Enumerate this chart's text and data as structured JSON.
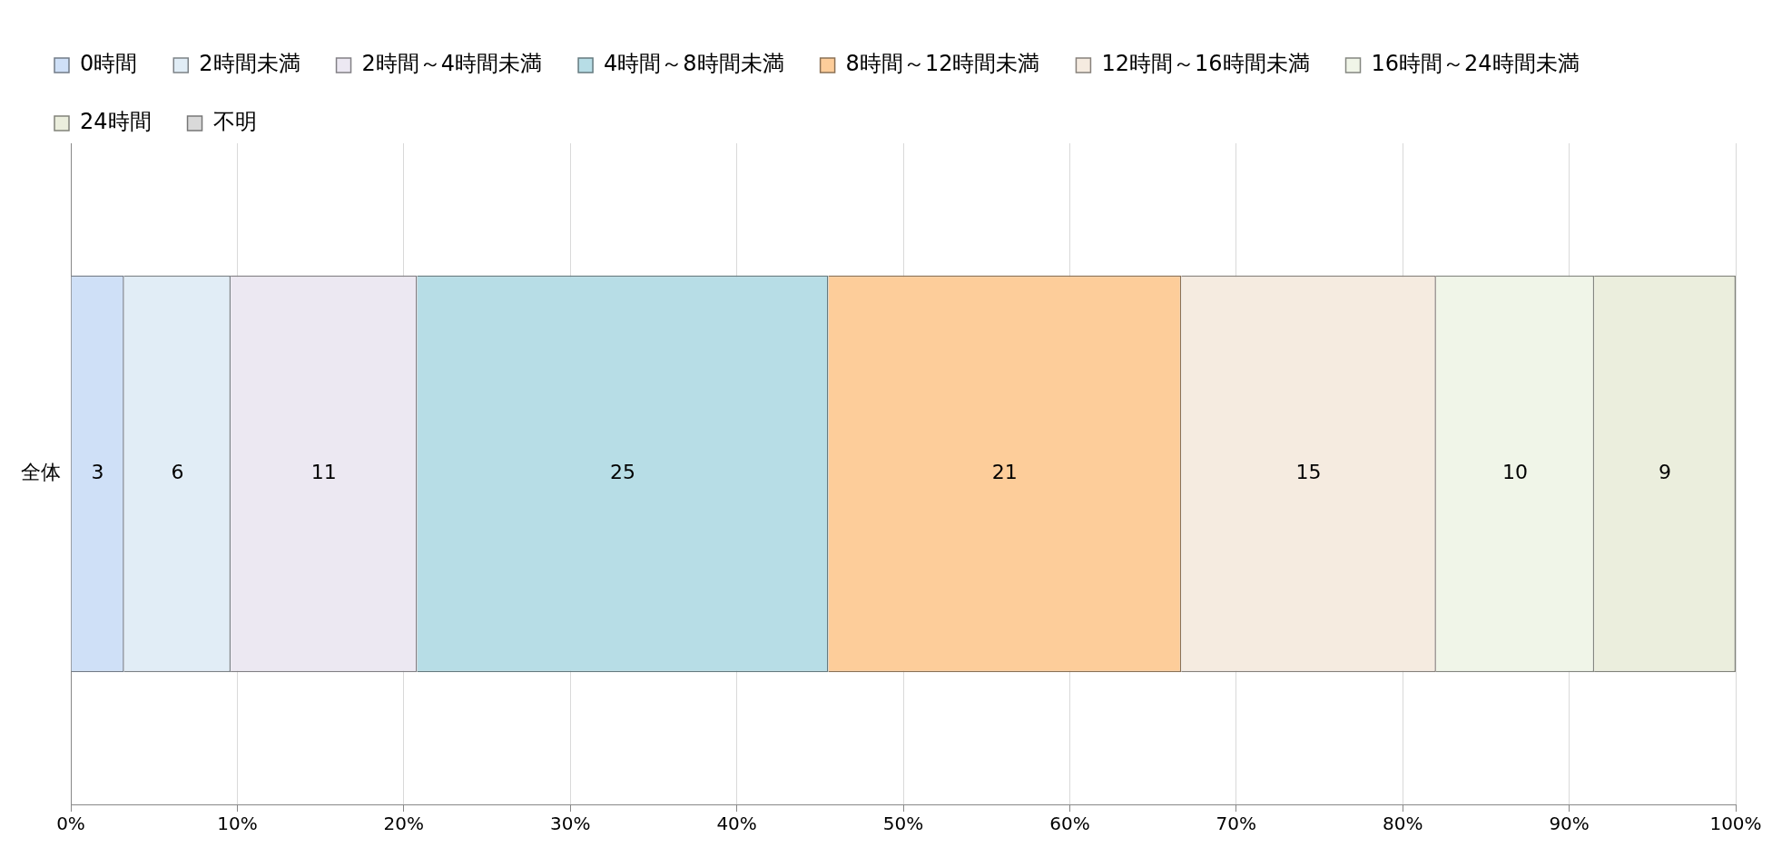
{
  "chart_data": {
    "type": "bar",
    "orientation": "horizontal",
    "stacked": true,
    "categories": [
      "全体"
    ],
    "series": [
      {
        "name": "0時間",
        "color": "#cfe0f7",
        "values": [
          3.2
        ],
        "value_labels": [
          "3"
        ]
      },
      {
        "name": "2時間未満",
        "color": "#e1edf6",
        "values": [
          6.4
        ],
        "value_labels": [
          "6"
        ]
      },
      {
        "name": "2時間～4時間未満",
        "color": "#ece8f2",
        "values": [
          11.2
        ],
        "value_labels": [
          "11"
        ]
      },
      {
        "name": "4時間～8時間未満",
        "color": "#b7dde6",
        "values": [
          24.7
        ],
        "value_labels": [
          "25"
        ]
      },
      {
        "name": "8時間～12時間未満",
        "color": "#fdcd9a",
        "values": [
          21.2
        ],
        "value_labels": [
          "21"
        ]
      },
      {
        "name": "12時間～16時間未満",
        "color": "#f5ebe0",
        "values": [
          15.3
        ],
        "value_labels": [
          "15"
        ]
      },
      {
        "name": "16時間～24時間未満",
        "color": "#f0f5e8",
        "values": [
          9.5
        ],
        "value_labels": [
          "10"
        ]
      },
      {
        "name": "24時間",
        "color": "#ebeedd",
        "values": [
          8.5
        ],
        "value_labels": [
          "9"
        ]
      },
      {
        "name": "不明",
        "color": "#d9d9d9",
        "values": [
          0.1
        ],
        "value_labels": [
          null
        ]
      }
    ],
    "xlim": [
      0,
      100
    ],
    "xticks": [
      {
        "value": 0,
        "label": "0%"
      },
      {
        "value": 10,
        "label": "10%"
      },
      {
        "value": 20,
        "label": "20%"
      },
      {
        "value": 30,
        "label": "30%"
      },
      {
        "value": 40,
        "label": "40%"
      },
      {
        "value": 50,
        "label": "50%"
      },
      {
        "value": 60,
        "label": "60%"
      },
      {
        "value": 70,
        "label": "70%"
      },
      {
        "value": 80,
        "label": "80%"
      },
      {
        "value": 90,
        "label": "90%"
      },
      {
        "value": 100,
        "label": "100%"
      }
    ],
    "grid": "x",
    "legend": "top"
  }
}
